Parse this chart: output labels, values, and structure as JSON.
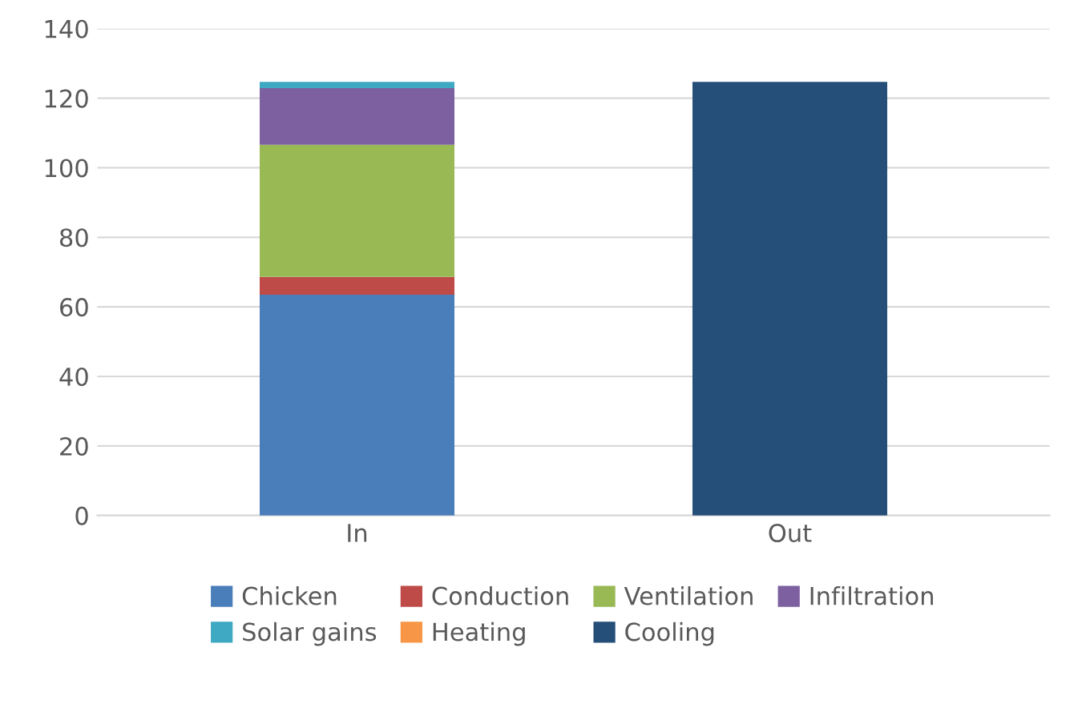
{
  "chart_data": {
    "type": "bar",
    "stacked": true,
    "categories": [
      "In",
      "Out"
    ],
    "series": [
      {
        "name": "Chicken",
        "color": "#4a7ebb",
        "values": [
          63.5,
          null
        ]
      },
      {
        "name": "Conduction",
        "color": "#be4b48",
        "values": [
          5.1,
          null
        ]
      },
      {
        "name": "Ventilation",
        "color": "#98b954",
        "values": [
          38,
          null
        ]
      },
      {
        "name": "Infiltration",
        "color": "#7d60a0",
        "values": [
          16.3,
          null
        ]
      },
      {
        "name": "Solar gains",
        "color": "#3fa9c3",
        "values": [
          1.8,
          null
        ]
      },
      {
        "name": "Heating",
        "color": "#f79646",
        "values": [
          0,
          null
        ]
      },
      {
        "name": "Cooling",
        "color": "#254e78",
        "values": [
          null,
          124.7
        ]
      }
    ],
    "ylim": [
      0,
      140
    ],
    "yticks": [
      0,
      20,
      40,
      60,
      80,
      100,
      120,
      140
    ],
    "grid": "y",
    "legend": "bottom"
  }
}
